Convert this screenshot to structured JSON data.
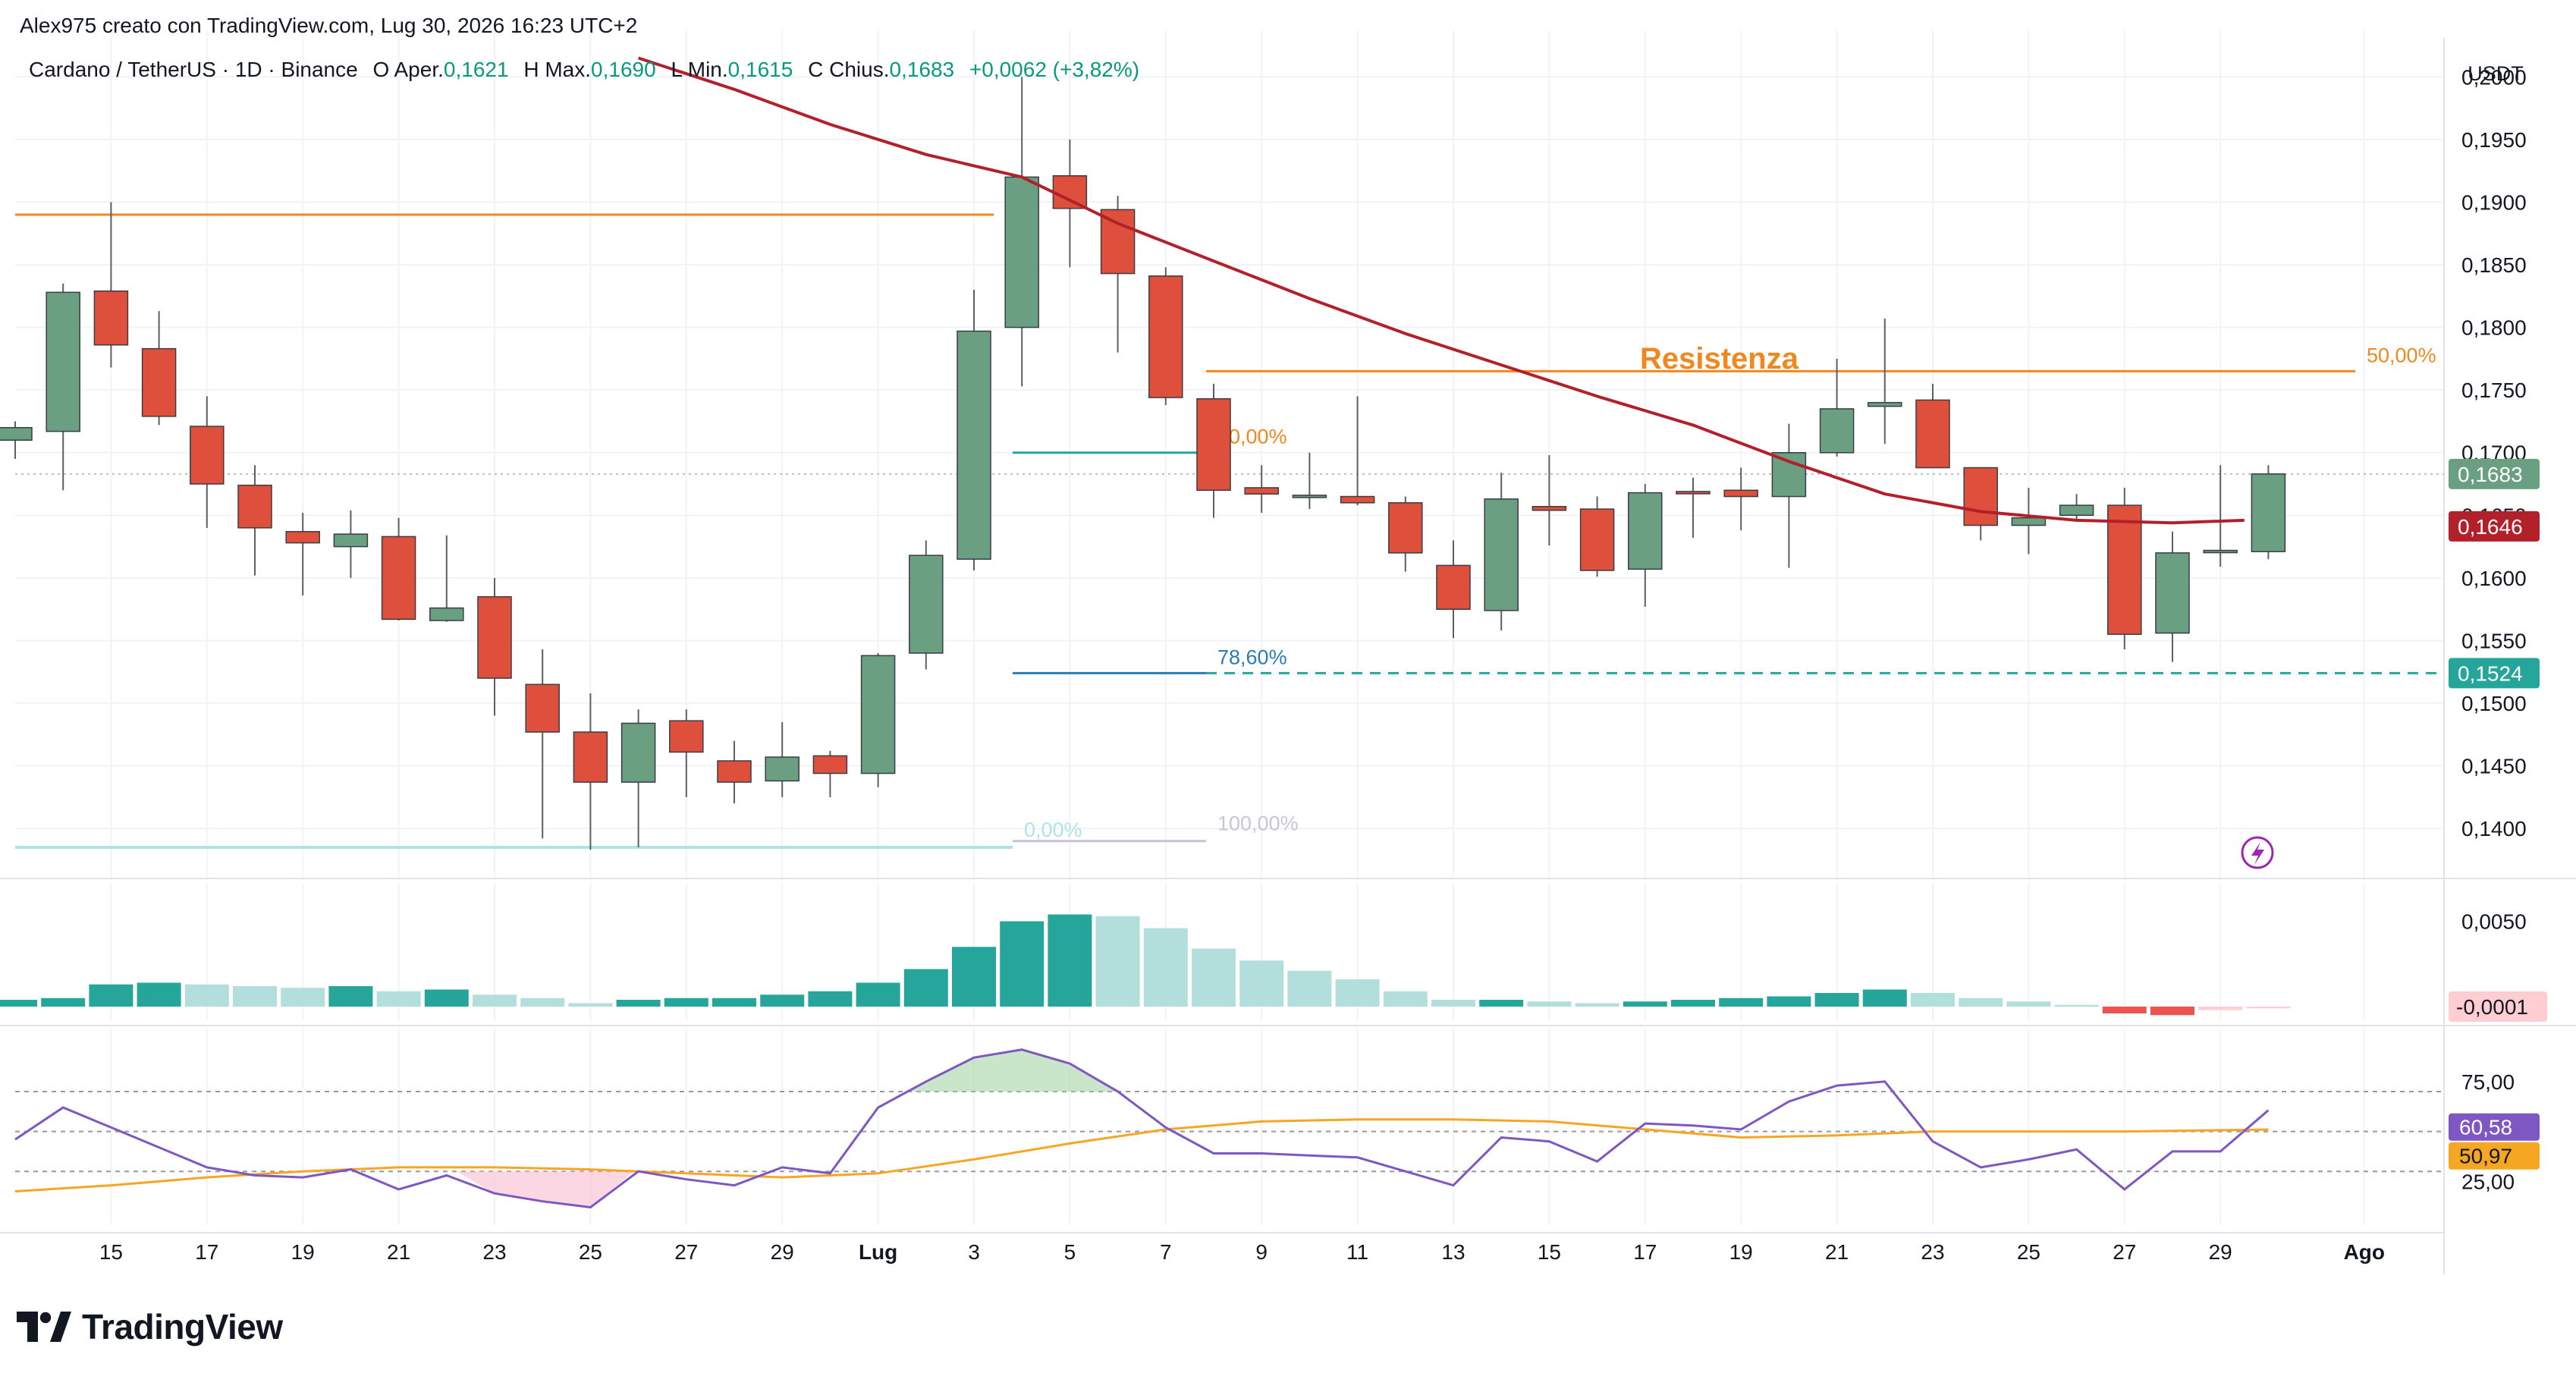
{
  "header": {
    "attribution": "Alex975 creato con TradingView.com, Lug 30, 2026 16:23 UTC+2"
  },
  "legend": {
    "symbol": "Cardano / TetherUS · 1D · Binance",
    "open_label": "O",
    "open_text": "Aper.",
    "open_value": "0,1621",
    "high_label": "H",
    "high_text": "Max.",
    "high_value": "0,1690",
    "low_label": "L",
    "low_text": "Min.",
    "low_value": "0,1615",
    "close_label": "C",
    "close_text": "Chius.",
    "close_value": "0,1683",
    "change": "+0,0062 (+3,82%)"
  },
  "brand": {
    "name": "TradingView"
  },
  "colors": {
    "up": "#6a9f82",
    "down": "#de4f3c",
    "ma": "#b2202a",
    "resistance": "#f08820",
    "fib_teal": "#26a69a",
    "fib_blue": "#2a7bb6",
    "fib_light": "#aee3e8",
    "macd_up_strong": "#26a69a",
    "macd_up_weak": "#b2dfdb",
    "macd_down": "#ef5350",
    "rsi": "#7e57c2",
    "rsi_ma": "#f5a623",
    "grid": "#f0f3fa"
  },
  "chart_data": {
    "type": "candlestick",
    "price_axis": {
      "currency": "USDT",
      "ylim": [
        0.1365,
        0.2025
      ],
      "ticks": [
        "0,2000",
        "0,1950",
        "0,1900",
        "0,1850",
        "0,1800",
        "0,1750",
        "0,1700",
        "0,1650",
        "0,1600",
        "0,1550",
        "0,1500",
        "0,1450",
        "0,1400"
      ],
      "tick_values": [
        0.2,
        0.195,
        0.19,
        0.185,
        0.18,
        0.175,
        0.17,
        0.165,
        0.16,
        0.155,
        0.15,
        0.145,
        0.14
      ]
    },
    "x_axis": {
      "ticks": [
        "15",
        "17",
        "19",
        "21",
        "23",
        "25",
        "27",
        "29",
        "Lug",
        "3",
        "5",
        "7",
        "9",
        "11",
        "13",
        "15",
        "17",
        "19",
        "21",
        "23",
        "25",
        "27",
        "29",
        "Ago"
      ],
      "tick_day_index": [
        2,
        4,
        6,
        8,
        10,
        12,
        14,
        16,
        18,
        20,
        22,
        24,
        26,
        28,
        30,
        32,
        34,
        36,
        38,
        40,
        42,
        44,
        46,
        49
      ]
    },
    "candles": [
      {
        "d": 0,
        "o": 0.171,
        "h": 0.1725,
        "l": 0.1695,
        "c": 0.172
      },
      {
        "d": 1,
        "o": 0.1717,
        "h": 0.1835,
        "l": 0.167,
        "c": 0.1828
      },
      {
        "d": 2,
        "o": 0.1829,
        "h": 0.19,
        "l": 0.1768,
        "c": 0.1786
      },
      {
        "d": 3,
        "o": 0.1783,
        "h": 0.1813,
        "l": 0.1722,
        "c": 0.1729
      },
      {
        "d": 4,
        "o": 0.1721,
        "h": 0.1745,
        "l": 0.164,
        "c": 0.1675
      },
      {
        "d": 5,
        "o": 0.1674,
        "h": 0.169,
        "l": 0.1602,
        "c": 0.164
      },
      {
        "d": 6,
        "o": 0.1637,
        "h": 0.1652,
        "l": 0.1586,
        "c": 0.1628
      },
      {
        "d": 7,
        "o": 0.1625,
        "h": 0.1654,
        "l": 0.16,
        "c": 0.1635
      },
      {
        "d": 8,
        "o": 0.1633,
        "h": 0.1648,
        "l": 0.1566,
        "c": 0.1567
      },
      {
        "d": 9,
        "o": 0.1566,
        "h": 0.1634,
        "l": 0.1565,
        "c": 0.1576
      },
      {
        "d": 10,
        "o": 0.1585,
        "h": 0.16,
        "l": 0.149,
        "c": 0.152
      },
      {
        "d": 11,
        "o": 0.1515,
        "h": 0.1543,
        "l": 0.1392,
        "c": 0.1477
      },
      {
        "d": 12,
        "o": 0.1477,
        "h": 0.1508,
        "l": 0.1383,
        "c": 0.1437
      },
      {
        "d": 13,
        "o": 0.1437,
        "h": 0.1495,
        "l": 0.1385,
        "c": 0.1484
      },
      {
        "d": 14,
        "o": 0.1486,
        "h": 0.1495,
        "l": 0.1425,
        "c": 0.1461
      },
      {
        "d": 15,
        "o": 0.1454,
        "h": 0.147,
        "l": 0.142,
        "c": 0.1437
      },
      {
        "d": 16,
        "o": 0.1438,
        "h": 0.1485,
        "l": 0.1425,
        "c": 0.1457
      },
      {
        "d": 17,
        "o": 0.1458,
        "h": 0.1462,
        "l": 0.1425,
        "c": 0.1444
      },
      {
        "d": 18,
        "o": 0.1444,
        "h": 0.154,
        "l": 0.1433,
        "c": 0.1538
      },
      {
        "d": 19,
        "o": 0.154,
        "h": 0.163,
        "l": 0.1527,
        "c": 0.1618
      },
      {
        "d": 20,
        "o": 0.1615,
        "h": 0.183,
        "l": 0.1606,
        "c": 0.1797
      },
      {
        "d": 21,
        "o": 0.18,
        "h": 0.2,
        "l": 0.1753,
        "c": 0.192
      },
      {
        "d": 22,
        "o": 0.1921,
        "h": 0.195,
        "l": 0.1848,
        "c": 0.1895
      },
      {
        "d": 23,
        "o": 0.1894,
        "h": 0.1905,
        "l": 0.178,
        "c": 0.1843
      },
      {
        "d": 24,
        "o": 0.1841,
        "h": 0.1848,
        "l": 0.1738,
        "c": 0.1744
      },
      {
        "d": 25,
        "o": 0.1743,
        "h": 0.1755,
        "l": 0.1648,
        "c": 0.167
      },
      {
        "d": 26,
        "o": 0.1672,
        "h": 0.169,
        "l": 0.1652,
        "c": 0.1667
      },
      {
        "d": 27,
        "o": 0.1665,
        "h": 0.17,
        "l": 0.1655,
        "c": 0.1666
      },
      {
        "d": 28,
        "o": 0.1665,
        "h": 0.1745,
        "l": 0.1658,
        "c": 0.166
      },
      {
        "d": 29,
        "o": 0.166,
        "h": 0.1665,
        "l": 0.1605,
        "c": 0.162
      },
      {
        "d": 30,
        "o": 0.161,
        "h": 0.163,
        "l": 0.1552,
        "c": 0.1575
      },
      {
        "d": 31,
        "o": 0.1574,
        "h": 0.1684,
        "l": 0.1558,
        "c": 0.1663
      },
      {
        "d": 32,
        "o": 0.1657,
        "h": 0.1698,
        "l": 0.1626,
        "c": 0.1654
      },
      {
        "d": 33,
        "o": 0.1655,
        "h": 0.1665,
        "l": 0.1601,
        "c": 0.1606
      },
      {
        "d": 34,
        "o": 0.1607,
        "h": 0.1675,
        "l": 0.1577,
        "c": 0.1668
      },
      {
        "d": 35,
        "o": 0.1669,
        "h": 0.168,
        "l": 0.1632,
        "c": 0.1668
      },
      {
        "d": 36,
        "o": 0.167,
        "h": 0.1688,
        "l": 0.1638,
        "c": 0.1665
      },
      {
        "d": 37,
        "o": 0.1665,
        "h": 0.1723,
        "l": 0.1608,
        "c": 0.17
      },
      {
        "d": 38,
        "o": 0.17,
        "h": 0.1775,
        "l": 0.1697,
        "c": 0.1735
      },
      {
        "d": 39,
        "o": 0.1737,
        "h": 0.1807,
        "l": 0.1707,
        "c": 0.174
      },
      {
        "d": 40,
        "o": 0.1742,
        "h": 0.1755,
        "l": 0.1688,
        "c": 0.1688
      },
      {
        "d": 41,
        "o": 0.1688,
        "h": 0.1688,
        "l": 0.163,
        "c": 0.1642
      },
      {
        "d": 42,
        "o": 0.1642,
        "h": 0.1672,
        "l": 0.1619,
        "c": 0.1648
      },
      {
        "d": 43,
        "o": 0.165,
        "h": 0.1667,
        "l": 0.1645,
        "c": 0.1658
      },
      {
        "d": 44,
        "o": 0.1658,
        "h": 0.1672,
        "l": 0.1543,
        "c": 0.1555
      },
      {
        "d": 45,
        "o": 0.1556,
        "h": 0.1637,
        "l": 0.1533,
        "c": 0.162
      },
      {
        "d": 46,
        "o": 0.1622,
        "h": 0.169,
        "l": 0.1609,
        "c": 0.1622
      },
      {
        "d": 47,
        "o": 0.1621,
        "h": 0.169,
        "l": 0.1615,
        "c": 0.1683
      }
    ],
    "moving_average": [
      {
        "d": 13,
        "v": 0.2015
      },
      {
        "d": 15,
        "v": 0.199
      },
      {
        "d": 17,
        "v": 0.1962
      },
      {
        "d": 19,
        "v": 0.1938
      },
      {
        "d": 21,
        "v": 0.192
      },
      {
        "d": 23,
        "v": 0.1883
      },
      {
        "d": 25,
        "v": 0.1853
      },
      {
        "d": 27,
        "v": 0.1823
      },
      {
        "d": 29,
        "v": 0.1795
      },
      {
        "d": 31,
        "v": 0.177
      },
      {
        "d": 33,
        "v": 0.1745
      },
      {
        "d": 35,
        "v": 0.1722
      },
      {
        "d": 37,
        "v": 0.1693
      },
      {
        "d": 39,
        "v": 0.1667
      },
      {
        "d": 41,
        "v": 0.1653
      },
      {
        "d": 43,
        "v": 0.1646
      },
      {
        "d": 45,
        "v": 0.1644
      },
      {
        "d": 46.5,
        "v": 0.1646
      }
    ],
    "price_labels": [
      {
        "text": "0,1683",
        "value": 0.1683,
        "kind": "last"
      },
      {
        "text": "0,1646",
        "value": 0.1646,
        "kind": "ma"
      },
      {
        "text": "0,1524",
        "value": 0.1524,
        "kind": "support"
      }
    ],
    "annotations": {
      "resistance_text": "Resistenza",
      "resistance_level": 0.189,
      "resistance_level_2": 0.1765,
      "fib_50_right": "50,00%",
      "fib_50": "50,00%",
      "fib_786": "78,60%",
      "fib_0": "0,00%",
      "fib_100": "100,00%",
      "fib_top_fragment": "%",
      "fib_50_value": 0.17,
      "fib_786_value": 0.1524,
      "fib_0_value": 0.1385,
      "fib_100_value": 0.139
    },
    "macd": {
      "ticks": [
        "0,0050",
        "-0,0001"
      ],
      "tick_values": [
        0.005,
        -0.0001
      ],
      "ylim": [
        -0.0008,
        0.0072
      ],
      "histogram": [
        {
          "d": 0,
          "v": 0.0004
        },
        {
          "d": 1,
          "v": 0.0005
        },
        {
          "d": 2,
          "v": 0.0013
        },
        {
          "d": 3,
          "v": 0.0014
        },
        {
          "d": 4,
          "v": 0.0013
        },
        {
          "d": 5,
          "v": 0.0012
        },
        {
          "d": 6,
          "v": 0.0011
        },
        {
          "d": 7,
          "v": 0.0012
        },
        {
          "d": 8,
          "v": 0.0009
        },
        {
          "d": 9,
          "v": 0.001
        },
        {
          "d": 10,
          "v": 0.0007
        },
        {
          "d": 11,
          "v": 0.0005
        },
        {
          "d": 12,
          "v": 0.0002
        },
        {
          "d": 13,
          "v": 0.0004
        },
        {
          "d": 14,
          "v": 0.0005
        },
        {
          "d": 15,
          "v": 0.0005
        },
        {
          "d": 16,
          "v": 0.0007
        },
        {
          "d": 17,
          "v": 0.0009
        },
        {
          "d": 18,
          "v": 0.0014
        },
        {
          "d": 19,
          "v": 0.0022
        },
        {
          "d": 20,
          "v": 0.0035
        },
        {
          "d": 21,
          "v": 0.005
        },
        {
          "d": 22,
          "v": 0.0054
        },
        {
          "d": 23,
          "v": 0.0053
        },
        {
          "d": 24,
          "v": 0.0046
        },
        {
          "d": 25,
          "v": 0.0034
        },
        {
          "d": 26,
          "v": 0.0027
        },
        {
          "d": 27,
          "v": 0.0021
        },
        {
          "d": 28,
          "v": 0.0016
        },
        {
          "d": 29,
          "v": 0.0009
        },
        {
          "d": 30,
          "v": 0.0004
        },
        {
          "d": 31,
          "v": 0.0004
        },
        {
          "d": 32,
          "v": 0.0003
        },
        {
          "d": 33,
          "v": 0.0002
        },
        {
          "d": 34,
          "v": 0.0003
        },
        {
          "d": 35,
          "v": 0.0004
        },
        {
          "d": 36,
          "v": 0.0005
        },
        {
          "d": 37,
          "v": 0.0006
        },
        {
          "d": 38,
          "v": 0.0008
        },
        {
          "d": 39,
          "v": 0.001
        },
        {
          "d": 40,
          "v": 0.0008
        },
        {
          "d": 41,
          "v": 0.0005
        },
        {
          "d": 42,
          "v": 0.0003
        },
        {
          "d": 43,
          "v": 0.0001
        },
        {
          "d": 44,
          "v": -0.0004
        },
        {
          "d": 45,
          "v": -0.0005
        },
        {
          "d": 46,
          "v": -0.0002
        },
        {
          "d": 47,
          "v": -0.0001
        }
      ]
    },
    "rsi": {
      "ticks": [
        "75,00",
        "25,00"
      ],
      "tick_values": [
        75,
        25
      ],
      "ylim": [
        5,
        100
      ],
      "upper_band": 70,
      "middle_band": 50,
      "lower_band": 30,
      "rsi_label": "60,58",
      "rsi_ma_label": "50,97",
      "rsi_value": 60.58,
      "rsi_ma_value": 50.97,
      "rsi_line": [
        {
          "d": 0,
          "v": 46
        },
        {
          "d": 1,
          "v": 62
        },
        {
          "d": 2,
          "v": 52
        },
        {
          "d": 3,
          "v": 42
        },
        {
          "d": 4,
          "v": 32
        },
        {
          "d": 5,
          "v": 28
        },
        {
          "d": 6,
          "v": 27
        },
        {
          "d": 7,
          "v": 31
        },
        {
          "d": 8,
          "v": 21
        },
        {
          "d": 9,
          "v": 28
        },
        {
          "d": 10,
          "v": 19
        },
        {
          "d": 11,
          "v": 15
        },
        {
          "d": 12,
          "v": 12
        },
        {
          "d": 13,
          "v": 30
        },
        {
          "d": 14,
          "v": 26
        },
        {
          "d": 15,
          "v": 23
        },
        {
          "d": 16,
          "v": 32
        },
        {
          "d": 17,
          "v": 29
        },
        {
          "d": 18,
          "v": 62
        },
        {
          "d": 19,
          "v": 75
        },
        {
          "d": 20,
          "v": 87
        },
        {
          "d": 21,
          "v": 91
        },
        {
          "d": 22,
          "v": 84
        },
        {
          "d": 23,
          "v": 70
        },
        {
          "d": 24,
          "v": 52
        },
        {
          "d": 25,
          "v": 39
        },
        {
          "d": 26,
          "v": 39
        },
        {
          "d": 27,
          "v": 38
        },
        {
          "d": 28,
          "v": 37
        },
        {
          "d": 29,
          "v": 30
        },
        {
          "d": 30,
          "v": 23
        },
        {
          "d": 31,
          "v": 47
        },
        {
          "d": 32,
          "v": 45
        },
        {
          "d": 33,
          "v": 35
        },
        {
          "d": 34,
          "v": 54
        },
        {
          "d": 35,
          "v": 53
        },
        {
          "d": 36,
          "v": 51
        },
        {
          "d": 37,
          "v": 65
        },
        {
          "d": 38,
          "v": 73
        },
        {
          "d": 39,
          "v": 75
        },
        {
          "d": 40,
          "v": 45
        },
        {
          "d": 41,
          "v": 32
        },
        {
          "d": 42,
          "v": 36
        },
        {
          "d": 43,
          "v": 41
        },
        {
          "d": 44,
          "v": 21
        },
        {
          "d": 45,
          "v": 40
        },
        {
          "d": 46,
          "v": 40
        },
        {
          "d": 47,
          "v": 60.58
        }
      ],
      "rsi_ma_line": [
        {
          "d": 0,
          "v": 20
        },
        {
          "d": 2,
          "v": 23
        },
        {
          "d": 4,
          "v": 27
        },
        {
          "d": 6,
          "v": 30
        },
        {
          "d": 8,
          "v": 32
        },
        {
          "d": 10,
          "v": 32
        },
        {
          "d": 12,
          "v": 31
        },
        {
          "d": 14,
          "v": 29
        },
        {
          "d": 16,
          "v": 27
        },
        {
          "d": 18,
          "v": 29
        },
        {
          "d": 20,
          "v": 36
        },
        {
          "d": 22,
          "v": 44
        },
        {
          "d": 24,
          "v": 51
        },
        {
          "d": 26,
          "v": 55
        },
        {
          "d": 28,
          "v": 56
        },
        {
          "d": 30,
          "v": 56
        },
        {
          "d": 32,
          "v": 55
        },
        {
          "d": 34,
          "v": 51
        },
        {
          "d": 36,
          "v": 47
        },
        {
          "d": 38,
          "v": 48
        },
        {
          "d": 40,
          "v": 50
        },
        {
          "d": 42,
          "v": 50
        },
        {
          "d": 44,
          "v": 50
        },
        {
          "d": 47,
          "v": 50.97
        }
      ]
    }
  }
}
